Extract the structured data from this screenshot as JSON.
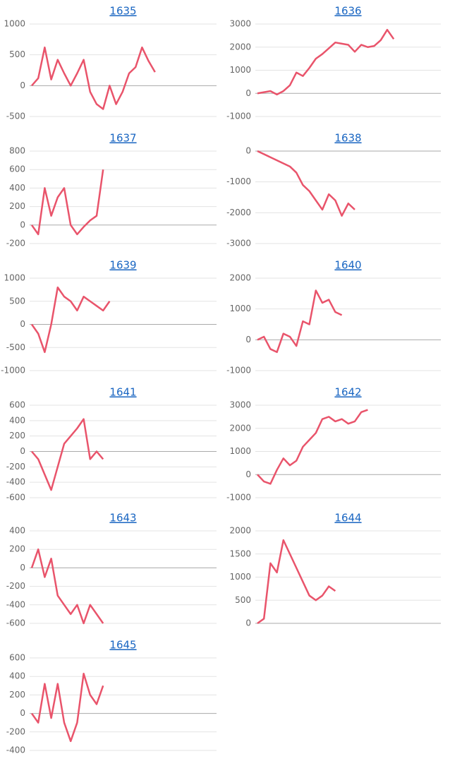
{
  "chart_data": [
    {
      "type": "line",
      "title": "1635",
      "ylim": [
        -500,
        1000
      ],
      "yticks": [
        -500,
        0,
        500,
        1000
      ],
      "grid": true,
      "color": "#e9546b",
      "values": [
        0,
        120,
        620,
        100,
        420,
        200,
        0,
        200,
        420,
        -100,
        -300,
        -380,
        0,
        -300,
        -100,
        200,
        300,
        620,
        400,
        220
      ]
    },
    {
      "type": "line",
      "title": "1636",
      "ylim": [
        -1000,
        3000
      ],
      "yticks": [
        -1000,
        0,
        1000,
        2000,
        3000
      ],
      "grid": true,
      "color": "#e9546b",
      "values": [
        0,
        50,
        100,
        -50,
        100,
        350,
        900,
        750,
        1100,
        1500,
        1700,
        1950,
        2200,
        2150,
        2100,
        1800,
        2100,
        2000,
        2050,
        2300,
        2750,
        2350
      ]
    },
    {
      "type": "line",
      "title": "1637",
      "ylim": [
        -200,
        800
      ],
      "yticks": [
        -200,
        0,
        200,
        400,
        600,
        800
      ],
      "grid": true,
      "color": "#e9546b",
      "values": [
        0,
        -100,
        400,
        100,
        300,
        400,
        0,
        -100,
        -20,
        50,
        100,
        600
      ]
    },
    {
      "type": "line",
      "title": "1638",
      "ylim": [
        -3000,
        0
      ],
      "yticks": [
        -3000,
        -2000,
        -1000,
        0
      ],
      "grid": true,
      "color": "#e9546b",
      "values": [
        0,
        -100,
        -200,
        -300,
        -400,
        -500,
        -700,
        -1100,
        -1300,
        -1600,
        -1900,
        -1400,
        -1600,
        -2100,
        -1700,
        -1900
      ]
    },
    {
      "type": "line",
      "title": "1639",
      "ylim": [
        -1000,
        1000
      ],
      "yticks": [
        -1000,
        -500,
        0,
        500,
        1000
      ],
      "grid": true,
      "color": "#e9546b",
      "values": [
        0,
        -200,
        -600,
        0,
        800,
        600,
        500,
        300,
        600,
        500,
        400,
        300,
        500
      ]
    },
    {
      "type": "line",
      "title": "1640",
      "ylim": [
        -1000,
        2000
      ],
      "yticks": [
        -1000,
        0,
        1000,
        2000
      ],
      "grid": true,
      "color": "#e9546b",
      "values": [
        0,
        100,
        -300,
        -400,
        200,
        100,
        -200,
        600,
        500,
        1600,
        1200,
        1300,
        900,
        800
      ]
    },
    {
      "type": "line",
      "title": "1641",
      "ylim": [
        -600,
        600
      ],
      "yticks": [
        -600,
        -400,
        -200,
        0,
        200,
        400,
        600
      ],
      "grid": true,
      "color": "#e9546b",
      "values": [
        0,
        -100,
        -300,
        -500,
        -200,
        100,
        200,
        300,
        420,
        -100,
        0,
        -100
      ]
    },
    {
      "type": "line",
      "title": "1642",
      "ylim": [
        -1000,
        3000
      ],
      "yticks": [
        -1000,
        0,
        1000,
        2000,
        3000
      ],
      "grid": true,
      "color": "#e9546b",
      "values": [
        0,
        -300,
        -400,
        200,
        700,
        400,
        600,
        1200,
        1500,
        1800,
        2400,
        2500,
        2300,
        2400,
        2200,
        2300,
        2700,
        2800
      ]
    },
    {
      "type": "line",
      "title": "1643",
      "ylim": [
        -600,
        400
      ],
      "yticks": [
        -600,
        -400,
        -200,
        0,
        200,
        400
      ],
      "grid": true,
      "color": "#e9546b",
      "values": [
        0,
        200,
        -100,
        100,
        -300,
        -400,
        -500,
        -400,
        -600,
        -400,
        -500,
        -600
      ]
    },
    {
      "type": "line",
      "title": "1644",
      "ylim": [
        0,
        2000
      ],
      "yticks": [
        0,
        500,
        1000,
        1500,
        2000
      ],
      "grid": true,
      "color": "#e9546b",
      "values": [
        0,
        100,
        1300,
        1100,
        1800,
        1500,
        1200,
        900,
        600,
        500,
        600,
        800,
        700
      ]
    },
    {
      "type": "line",
      "title": "1645",
      "ylim": [
        -400,
        600
      ],
      "yticks": [
        -400,
        -200,
        0,
        200,
        400,
        600
      ],
      "grid": true,
      "color": "#e9546b",
      "values": [
        0,
        -100,
        320,
        -50,
        320,
        -100,
        -300,
        -100,
        430,
        200,
        100,
        300
      ]
    }
  ]
}
